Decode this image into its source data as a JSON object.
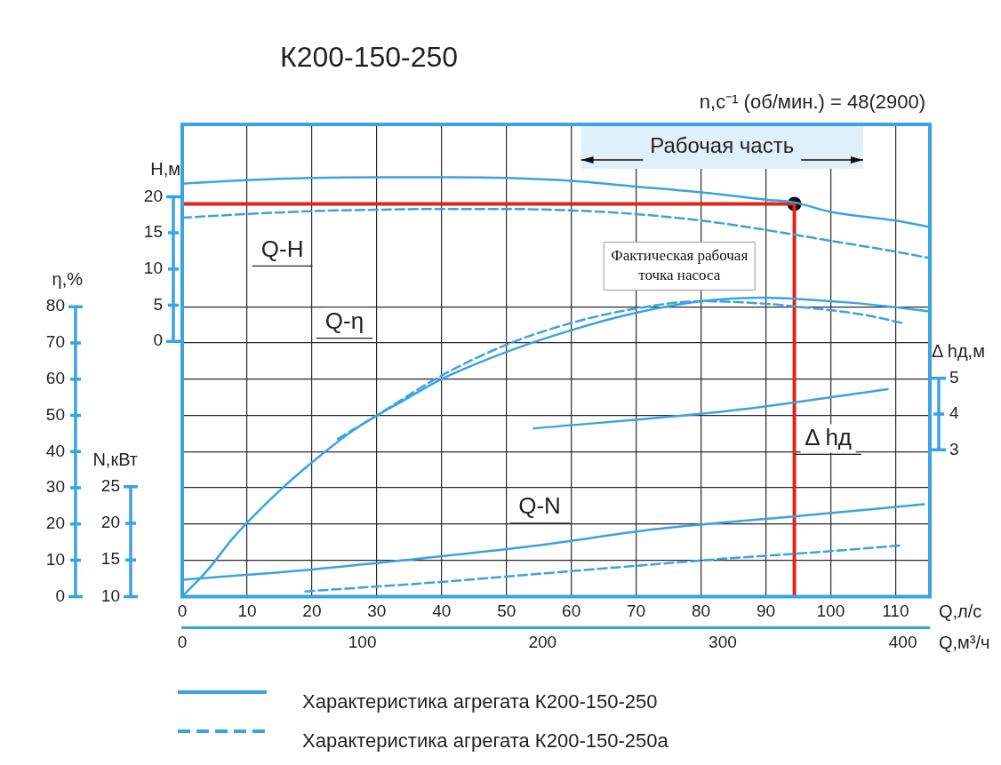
{
  "chart_data": [
    {
      "type": "line",
      "title": "К200-150-250",
      "subtitle": "n,с⁻¹ (об/мин.) = 48(2900)",
      "xlabel": "Q,л/с",
      "x2label": "Q,м³/ч",
      "ylabel": "H,м",
      "y2label": "η,%",
      "y3label": "N,кВт",
      "xlim": [
        0,
        115.3
      ],
      "xticks": [
        0,
        10,
        20,
        30,
        40,
        50,
        60,
        70,
        80,
        90,
        100,
        110
      ],
      "x2lim": [
        0,
        415
      ],
      "x2ticks": [
        0,
        100,
        200,
        300,
        400
      ],
      "ylim": [
        -35.3,
        30
      ],
      "yticks": [
        0,
        5,
        10,
        15,
        20
      ],
      "y2lim": [
        0,
        130.3
      ],
      "y2ticks": [
        0,
        10,
        20,
        30,
        40,
        50,
        60,
        70,
        80
      ],
      "y3lim": [
        10,
        74.5
      ],
      "y3ticks": [
        10,
        15,
        20,
        25
      ],
      "grid": true,
      "legend": "bottom",
      "marker": "none",
      "series": [
        {
          "name": "Характеристика агрегата К200-150-250",
          "color": "#3aa3e3",
          "axis": "y",
          "line_style": "solid",
          "x": [
            0,
            10,
            20,
            30,
            40,
            50,
            60,
            70,
            80,
            90,
            94.4,
            100,
            110,
            115.3
          ],
          "values": [
            21.8,
            22.3,
            22.6,
            22.7,
            22.7,
            22.6,
            22.2,
            21.4,
            20.6,
            19.6,
            19.2,
            17.9,
            16.7,
            15.8
          ]
        },
        {
          "name": "Характеристика агрегата К200-150-250а",
          "color": "#3aa3e3",
          "axis": "y",
          "line_style": "dashed",
          "x": [
            0,
            10,
            20,
            30,
            40,
            50,
            60,
            70,
            80,
            90,
            100,
            110,
            115.3
          ],
          "values": [
            17.1,
            17.6,
            18.0,
            18.2,
            18.3,
            18.3,
            18.1,
            17.6,
            16.7,
            15.4,
            13.9,
            12.4,
            11.5
          ]
        },
        {
          "color": "#3aa3e3",
          "axis": "y2",
          "line_style": "solid",
          "x": [
            0,
            4,
            8,
            15,
            20,
            26.4,
            35,
            40,
            50,
            60,
            70,
            80,
            90,
            96,
            105,
            115.3
          ],
          "values": [
            0,
            7.5,
            16.5,
            29.2,
            37,
            45.9,
            55,
            60,
            67.5,
            73.5,
            78.3,
            81.5,
            82.5,
            82,
            80.8,
            78.7
          ]
        },
        {
          "color": "#3aa3e3",
          "axis": "y2",
          "line_style": "dashed",
          "x": [
            24,
            30,
            40,
            50,
            60,
            70,
            80,
            90,
            96,
            105,
            111
          ],
          "values": [
            43.5,
            50,
            61,
            69.5,
            75.5,
            79.5,
            81.5,
            80.8,
            79.8,
            77.8,
            75.5
          ]
        },
        {
          "color": "#3aa3e3",
          "axis": "y3",
          "line_style": "solid",
          "x": [
            0,
            20,
            35.6,
            55,
            73,
            95,
            114.4
          ],
          "values": [
            12.3,
            13.7,
            15.1,
            17.0,
            19.2,
            21.0,
            22.6
          ]
        },
        {
          "color": "#3aa3e3",
          "axis": "y3",
          "line_style": "dashed",
          "x": [
            19,
            40,
            55,
            70,
            82.5,
            100,
            111
          ],
          "values": [
            10.7,
            12.0,
            13.1,
            14.2,
            15.1,
            16.2,
            17.0
          ]
        },
        {
          "color": "#e2231a",
          "axis": "y",
          "line_style": "solid",
          "x": [
            0,
            94.4,
            94.4
          ],
          "values": [
            19.0,
            19.0,
            -35.3
          ]
        },
        {
          "type": "scatter",
          "color": "#111111",
          "axis": "y",
          "marker": "circle",
          "x": [
            94.4
          ],
          "values": [
            19.0
          ]
        }
      ],
      "bands": [
        {
          "axis": "x",
          "from": 61.5,
          "to": 105,
          "label": "Рабочая часть",
          "color": "#dff0fb"
        }
      ],
      "annotations": [
        "Q-H",
        "Q-η",
        "Q-N",
        "Фактическая рабочая точка насоса"
      ]
    },
    {
      "type": "line",
      "ylabel": "Δ hд,м",
      "xlim": [
        0,
        115.3
      ],
      "ylim": [
        -1.1,
        12.1
      ],
      "yticks": [
        3,
        4,
        5
      ],
      "tick_labels": "y",
      "marker": "none",
      "series": [
        {
          "color": "#3aa3e3",
          "line_style": "solid",
          "x": [
            54.2,
            84.8,
            108.8
          ],
          "values": [
            3.6,
            4.1,
            4.7
          ]
        }
      ],
      "annotations": [
        "Δ hд"
      ]
    }
  ]
}
